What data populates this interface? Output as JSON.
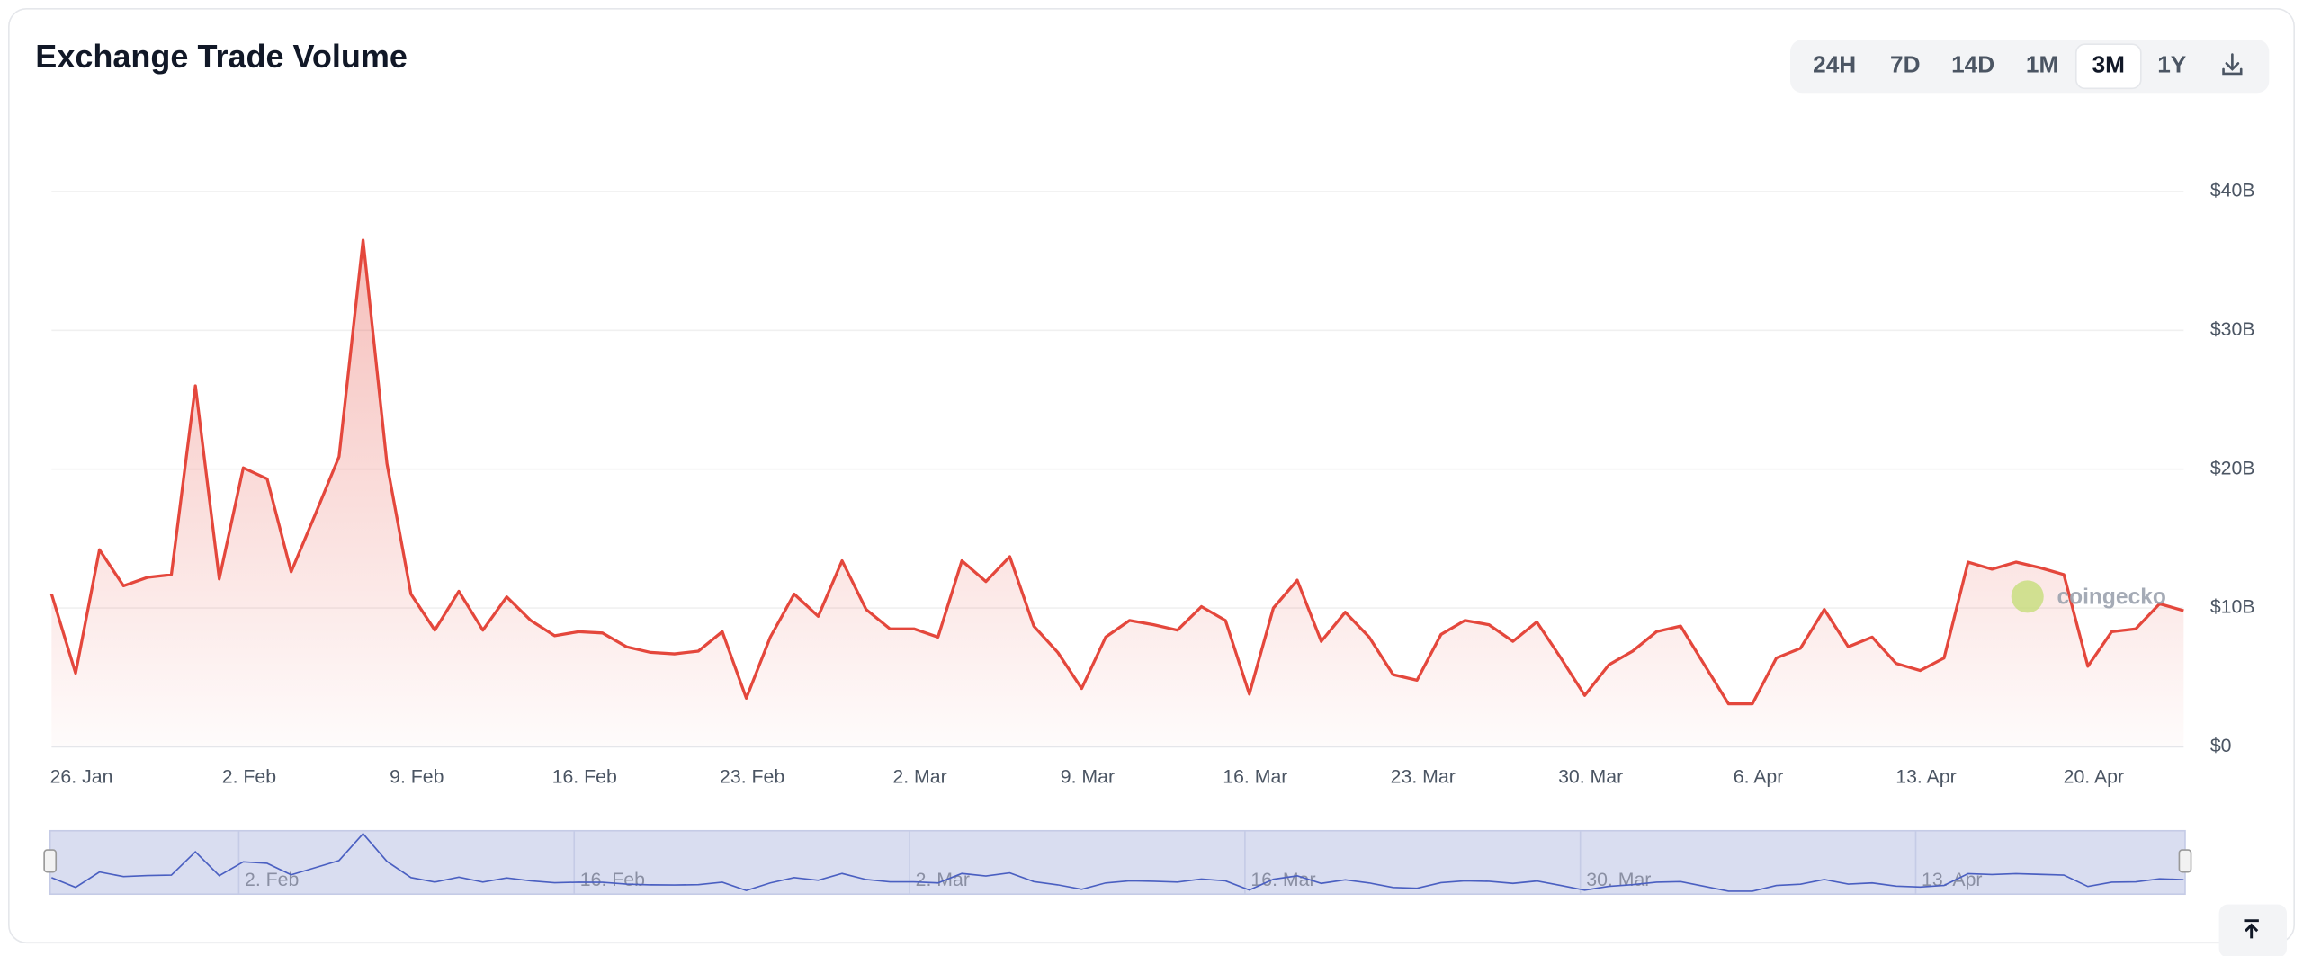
{
  "header": {
    "title": "Exchange Trade Volume"
  },
  "controls": {
    "buttons": [
      "24H",
      "7D",
      "14D",
      "1M",
      "3M",
      "1Y"
    ],
    "selected_index": 4
  },
  "chart_data": {
    "type": "area",
    "watermark": "coingecko",
    "color": "#e4473c",
    "categories": [
      null,
      "26. Jan",
      null,
      null,
      null,
      null,
      null,
      null,
      "2. Feb",
      null,
      null,
      null,
      null,
      null,
      null,
      "9. Feb",
      null,
      null,
      null,
      null,
      null,
      null,
      "16. Feb",
      null,
      null,
      null,
      null,
      null,
      null,
      "23. Feb",
      null,
      null,
      null,
      null,
      null,
      null,
      "2. Mar",
      null,
      null,
      null,
      null,
      null,
      null,
      "9. Mar",
      null,
      null,
      null,
      null,
      null,
      null,
      "16. Mar",
      null,
      null,
      null,
      null,
      null,
      null,
      "23. Mar",
      null,
      null,
      null,
      null,
      null,
      null,
      "30. Mar",
      null,
      null,
      null,
      null,
      null,
      null,
      "6. Apr",
      null,
      null,
      null,
      null,
      null,
      null,
      "13. Apr",
      null,
      null,
      null,
      null,
      null,
      null,
      "20. Apr",
      null,
      null,
      null,
      null
    ],
    "values": [
      11.0,
      5.3,
      14.2,
      11.6,
      12.2,
      12.4,
      26.0,
      12.1,
      20.1,
      19.3,
      12.6,
      16.7,
      20.9,
      36.5,
      20.4,
      11.0,
      8.4,
      11.2,
      8.4,
      10.8,
      9.1,
      8.0,
      8.3,
      8.2,
      7.2,
      6.8,
      6.7,
      6.9,
      8.3,
      3.5,
      7.9,
      11.0,
      9.4,
      13.4,
      9.9,
      8.5,
      8.5,
      7.9,
      13.4,
      11.9,
      13.7,
      8.7,
      6.8,
      4.2,
      7.9,
      9.1,
      8.8,
      8.4,
      10.1,
      9.1,
      3.8,
      10.0,
      12.0,
      7.6,
      9.7,
      7.9,
      5.2,
      4.8,
      8.1,
      9.1,
      8.8,
      7.6,
      9.0,
      6.4,
      3.7,
      5.9,
      6.9,
      8.3,
      8.7,
      5.9,
      3.1,
      3.1,
      6.4,
      7.1,
      9.9,
      7.2,
      7.9,
      6.0,
      5.5,
      6.4,
      13.3,
      12.8,
      13.3,
      12.9,
      12.4,
      5.8,
      8.3,
      8.5,
      10.3,
      9.8
    ],
    "ylim": [
      0,
      40
    ],
    "yticks": [
      {
        "value": 0,
        "label": "$0"
      },
      {
        "value": 10,
        "label": "$10B"
      },
      {
        "value": 20,
        "label": "$20B"
      },
      {
        "value": 30,
        "label": "$30B"
      },
      {
        "value": 40,
        "label": "$40B"
      }
    ],
    "grid": true
  }
}
